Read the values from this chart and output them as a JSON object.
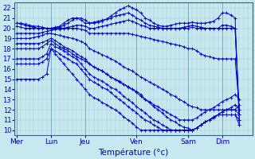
{
  "bg_color": "#c8e8f0",
  "line_color": "#0000cc",
  "xlabel": "Température (°c)",
  "ylim": [
    9.5,
    22.5
  ],
  "yticks": [
    10,
    11,
    12,
    13,
    14,
    15,
    16,
    17,
    18,
    19,
    20,
    21,
    22
  ],
  "day_labels": [
    "Mer",
    "Lun",
    "Jeu",
    "Ven",
    "Sam",
    "Dim"
  ],
  "day_x": [
    0,
    8,
    16,
    28,
    40,
    48
  ],
  "xlim": [
    -0.5,
    55
  ],
  "lines": [
    {
      "x": [
        0,
        1,
        2,
        3,
        4,
        5,
        6,
        7,
        8,
        9,
        10,
        11,
        12,
        13,
        14,
        15,
        16,
        17,
        18,
        19,
        20,
        21,
        22,
        23,
        24,
        25,
        26,
        27,
        28,
        29,
        30,
        31,
        32,
        33,
        34,
        35,
        36,
        37,
        38,
        39,
        40,
        41,
        42,
        43,
        44,
        45,
        46,
        47,
        48,
        49,
        50,
        51,
        52
      ],
      "y": [
        20.5,
        20.5,
        20.4,
        20.3,
        20.2,
        20.2,
        20.1,
        20.0,
        20.0,
        20.1,
        20.2,
        20.5,
        20.8,
        21.0,
        21.0,
        20.8,
        20.5,
        20.5,
        20.6,
        20.7,
        20.8,
        20.9,
        21.2,
        21.5,
        21.8,
        22.0,
        22.2,
        22.0,
        21.8,
        21.5,
        21.0,
        20.8,
        20.5,
        20.3,
        20.2,
        20.2,
        20.3,
        20.4,
        20.5,
        20.5,
        20.5,
        20.6,
        20.5,
        20.5,
        20.5,
        20.6,
        20.7,
        21.0,
        21.5,
        21.5,
        21.3,
        21.0,
        10.5
      ]
    },
    {
      "x": [
        0,
        1,
        2,
        3,
        4,
        5,
        6,
        7,
        8,
        9,
        10,
        11,
        12,
        13,
        14,
        15,
        16,
        17,
        18,
        19,
        20,
        21,
        22,
        23,
        24,
        25,
        26,
        27,
        28,
        29,
        30,
        31,
        32,
        33,
        34,
        35,
        36,
        37,
        38,
        39,
        40,
        41,
        42,
        43,
        44,
        45,
        46,
        47,
        48,
        49,
        50,
        51,
        52
      ],
      "y": [
        20.5,
        20.4,
        20.3,
        20.2,
        20.1,
        20.0,
        20.0,
        20.0,
        20.0,
        20.0,
        20.1,
        20.3,
        20.5,
        20.8,
        21.0,
        21.0,
        20.8,
        20.5,
        20.5,
        20.6,
        20.7,
        20.9,
        21.0,
        21.2,
        21.3,
        21.4,
        21.5,
        21.3,
        21.0,
        20.8,
        20.5,
        20.3,
        20.2,
        20.1,
        20.0,
        20.0,
        20.0,
        20.0,
        20.0,
        20.1,
        20.2,
        20.3,
        20.2,
        20.1,
        20.0,
        20.0,
        20.0,
        20.0,
        20.3,
        20.3,
        20.2,
        20.0,
        11.0
      ]
    },
    {
      "x": [
        0,
        1,
        2,
        3,
        4,
        5,
        6,
        7,
        8,
        9,
        10,
        11,
        12,
        13,
        14,
        15,
        16,
        17,
        18,
        19,
        20,
        21,
        22,
        23,
        24,
        25,
        26,
        27,
        28,
        29,
        30,
        31,
        32,
        33,
        34,
        35,
        36,
        37,
        38,
        39,
        40,
        41,
        42,
        43,
        44,
        45,
        46,
        47,
        48,
        49,
        50,
        51,
        52
      ],
      "y": [
        20.2,
        20.1,
        20.0,
        20.0,
        20.0,
        20.0,
        20.0,
        20.0,
        20.0,
        20.0,
        20.0,
        20.0,
        20.1,
        20.2,
        20.3,
        20.3,
        20.2,
        20.0,
        20.0,
        20.1,
        20.2,
        20.3,
        20.4,
        20.5,
        20.6,
        20.7,
        20.8,
        20.7,
        20.5,
        20.3,
        20.2,
        20.0,
        20.0,
        20.0,
        20.0,
        20.0,
        20.0,
        20.0,
        20.0,
        20.0,
        20.0,
        20.1,
        20.0,
        20.0,
        20.0,
        20.0,
        20.0,
        20.0,
        20.0,
        20.0,
        20.0,
        20.0,
        11.5
      ]
    },
    {
      "x": [
        0,
        1,
        2,
        3,
        4,
        5,
        6,
        7,
        8,
        9,
        10,
        11,
        12,
        13,
        14,
        15,
        16,
        17,
        18,
        19,
        20,
        21,
        22,
        23,
        24,
        25,
        26,
        27,
        28,
        29,
        30,
        31,
        32,
        33,
        34,
        35,
        36,
        37,
        38,
        39,
        40,
        41,
        42,
        43,
        44,
        45,
        46,
        47,
        48,
        49,
        50,
        51,
        52
      ],
      "y": [
        19.5,
        19.5,
        19.5,
        19.5,
        19.5,
        19.5,
        19.6,
        19.7,
        19.8,
        19.9,
        19.9,
        20.0,
        20.0,
        20.0,
        20.0,
        19.9,
        19.8,
        19.5,
        19.5,
        19.5,
        19.5,
        19.5,
        19.5,
        19.5,
        19.5,
        19.5,
        19.5,
        19.4,
        19.3,
        19.2,
        19.1,
        19.0,
        18.9,
        18.8,
        18.7,
        18.6,
        18.5,
        18.4,
        18.3,
        18.2,
        18.0,
        18.0,
        17.8,
        17.5,
        17.3,
        17.2,
        17.1,
        17.0,
        17.0,
        17.0,
        17.0,
        17.0,
        12.0
      ]
    },
    {
      "x": [
        0,
        1,
        2,
        3,
        4,
        5,
        6,
        7,
        8,
        9,
        10,
        11,
        12,
        13,
        14,
        15,
        16,
        17,
        18,
        19,
        20,
        21,
        22,
        23,
        24,
        25,
        26,
        27,
        28,
        29,
        30,
        31,
        32,
        33,
        34,
        35,
        36,
        37,
        38,
        39,
        40,
        41,
        42,
        43,
        44,
        45,
        46,
        47,
        48,
        49,
        50,
        51,
        52
      ],
      "y": [
        19.0,
        19.0,
        19.0,
        19.0,
        19.1,
        19.2,
        19.3,
        19.5,
        19.5,
        19.4,
        19.3,
        19.2,
        19.1,
        19.0,
        18.9,
        18.7,
        18.5,
        18.0,
        17.8,
        17.6,
        17.4,
        17.2,
        17.0,
        16.8,
        16.5,
        16.2,
        16.0,
        15.8,
        15.5,
        15.2,
        15.0,
        14.7,
        14.5,
        14.3,
        14.0,
        13.8,
        13.5,
        13.3,
        13.0,
        12.8,
        12.5,
        12.3,
        12.2,
        12.0,
        12.0,
        12.0,
        12.0,
        12.0,
        12.0,
        12.0,
        12.0,
        12.0,
        12.5
      ]
    },
    {
      "x": [
        0,
        1,
        2,
        3,
        4,
        5,
        6,
        7,
        8,
        9,
        10,
        11,
        12,
        13,
        14,
        15,
        16,
        17,
        18,
        19,
        20,
        21,
        22,
        23,
        24,
        25,
        26,
        27,
        28,
        29,
        30,
        31,
        32,
        33,
        34,
        35,
        36,
        37,
        38,
        39,
        40,
        41,
        42,
        43,
        44,
        45,
        46,
        47,
        48,
        49,
        50,
        51,
        52
      ],
      "y": [
        18.5,
        18.5,
        18.5,
        18.5,
        18.5,
        18.5,
        18.6,
        18.8,
        19.0,
        18.8,
        18.5,
        18.2,
        18.0,
        17.8,
        17.5,
        17.2,
        17.0,
        16.5,
        16.2,
        16.0,
        15.8,
        15.5,
        15.2,
        15.0,
        14.8,
        14.5,
        14.3,
        14.0,
        13.8,
        13.5,
        13.0,
        12.8,
        12.5,
        12.3,
        12.0,
        11.8,
        11.5,
        11.3,
        11.0,
        11.0,
        11.0,
        11.0,
        11.2,
        11.5,
        11.8,
        12.0,
        12.2,
        12.5,
        12.8,
        13.0,
        13.2,
        13.5,
        13.0
      ]
    },
    {
      "x": [
        0,
        1,
        2,
        3,
        4,
        5,
        6,
        7,
        8,
        9,
        10,
        11,
        12,
        13,
        14,
        15,
        16,
        17,
        18,
        19,
        20,
        21,
        22,
        23,
        24,
        25,
        26,
        27,
        28,
        29,
        30,
        31,
        32,
        33,
        34,
        35,
        36,
        37,
        38,
        39,
        40,
        41,
        42,
        43,
        44,
        45,
        46,
        47,
        48,
        49,
        50,
        51,
        52
      ],
      "y": [
        18.0,
        18.0,
        18.0,
        18.0,
        18.0,
        18.0,
        18.2,
        18.5,
        18.8,
        18.5,
        18.2,
        18.0,
        17.8,
        17.5,
        17.2,
        17.0,
        16.8,
        16.5,
        16.2,
        16.0,
        15.8,
        15.5,
        15.2,
        15.0,
        14.7,
        14.5,
        14.2,
        14.0,
        13.7,
        13.3,
        13.0,
        12.7,
        12.3,
        12.0,
        11.7,
        11.3,
        11.0,
        10.8,
        10.5,
        10.3,
        10.2,
        10.0,
        10.2,
        10.5,
        10.8,
        11.0,
        11.3,
        11.5,
        11.8,
        12.0,
        12.2,
        12.5,
        12.0
      ]
    },
    {
      "x": [
        0,
        1,
        2,
        3,
        4,
        5,
        6,
        7,
        8,
        9,
        10,
        11,
        12,
        13,
        14,
        15,
        16,
        17,
        18,
        19,
        20,
        21,
        22,
        23,
        24,
        25,
        26,
        27,
        28,
        29,
        30,
        31,
        32,
        33,
        34,
        35,
        36,
        37,
        38,
        39,
        40,
        41,
        42,
        43,
        44,
        45,
        46,
        47,
        48,
        49,
        50,
        51,
        52
      ],
      "y": [
        17.0,
        17.0,
        17.0,
        17.0,
        17.0,
        17.0,
        17.2,
        17.5,
        18.5,
        18.2,
        18.0,
        17.8,
        17.5,
        17.2,
        17.0,
        16.5,
        16.0,
        15.5,
        15.2,
        15.0,
        14.8,
        14.5,
        14.2,
        14.0,
        13.7,
        13.3,
        13.0,
        12.7,
        12.3,
        12.0,
        11.7,
        11.3,
        11.0,
        10.8,
        10.5,
        10.3,
        10.0,
        10.0,
        10.0,
        10.0,
        10.0,
        10.0,
        10.2,
        10.5,
        10.8,
        11.0,
        11.3,
        11.5,
        11.8,
        12.0,
        12.0,
        12.0,
        11.5
      ]
    },
    {
      "x": [
        0,
        1,
        2,
        3,
        4,
        5,
        6,
        7,
        8,
        9,
        10,
        11,
        12,
        13,
        14,
        15,
        16,
        17,
        18,
        19,
        20,
        21,
        22,
        23,
        24,
        25,
        26,
        27,
        28,
        29,
        30,
        31,
        32,
        33,
        34,
        35,
        36,
        37,
        38,
        39,
        40,
        41,
        42,
        43,
        44,
        45,
        46,
        47,
        48,
        49,
        50,
        51,
        52
      ],
      "y": [
        16.5,
        16.5,
        16.5,
        16.5,
        16.5,
        16.5,
        16.7,
        17.0,
        18.0,
        17.8,
        17.5,
        17.2,
        17.0,
        16.7,
        16.5,
        16.0,
        15.5,
        15.0,
        14.7,
        14.5,
        14.2,
        14.0,
        13.7,
        13.3,
        13.0,
        12.7,
        12.3,
        12.0,
        11.7,
        11.3,
        11.0,
        10.8,
        10.5,
        10.3,
        10.0,
        10.0,
        10.0,
        10.0,
        10.0,
        10.0,
        10.0,
        10.0,
        10.2,
        10.5,
        10.8,
        11.0,
        11.2,
        11.5,
        11.5,
        11.5,
        11.5,
        11.5,
        11.0
      ]
    },
    {
      "x": [
        0,
        1,
        2,
        3,
        4,
        5,
        6,
        7,
        8,
        9,
        10,
        11,
        12,
        13,
        14,
        15,
        16,
        17,
        18,
        19,
        20,
        21,
        22,
        23,
        24,
        25,
        26,
        27,
        28,
        29,
        30,
        31,
        32,
        33,
        34,
        35,
        36,
        37,
        38,
        39,
        40,
        41,
        42,
        43,
        44,
        45,
        46,
        47,
        48,
        49,
        50,
        51,
        52
      ],
      "y": [
        15.0,
        15.0,
        15.0,
        15.0,
        15.0,
        15.0,
        15.2,
        15.5,
        18.0,
        17.5,
        17.0,
        16.5,
        16.0,
        15.5,
        15.0,
        14.5,
        14.0,
        13.5,
        13.2,
        13.0,
        12.7,
        12.5,
        12.2,
        12.0,
        11.7,
        11.3,
        11.0,
        10.7,
        10.3,
        10.0,
        10.0,
        10.0,
        10.0,
        10.0,
        10.0,
        10.0,
        10.0,
        10.0,
        10.0,
        10.0,
        10.0,
        10.0,
        10.2,
        10.5,
        10.8,
        11.0,
        11.2,
        11.5,
        11.5,
        11.5,
        11.5,
        11.5,
        10.5
      ]
    }
  ]
}
